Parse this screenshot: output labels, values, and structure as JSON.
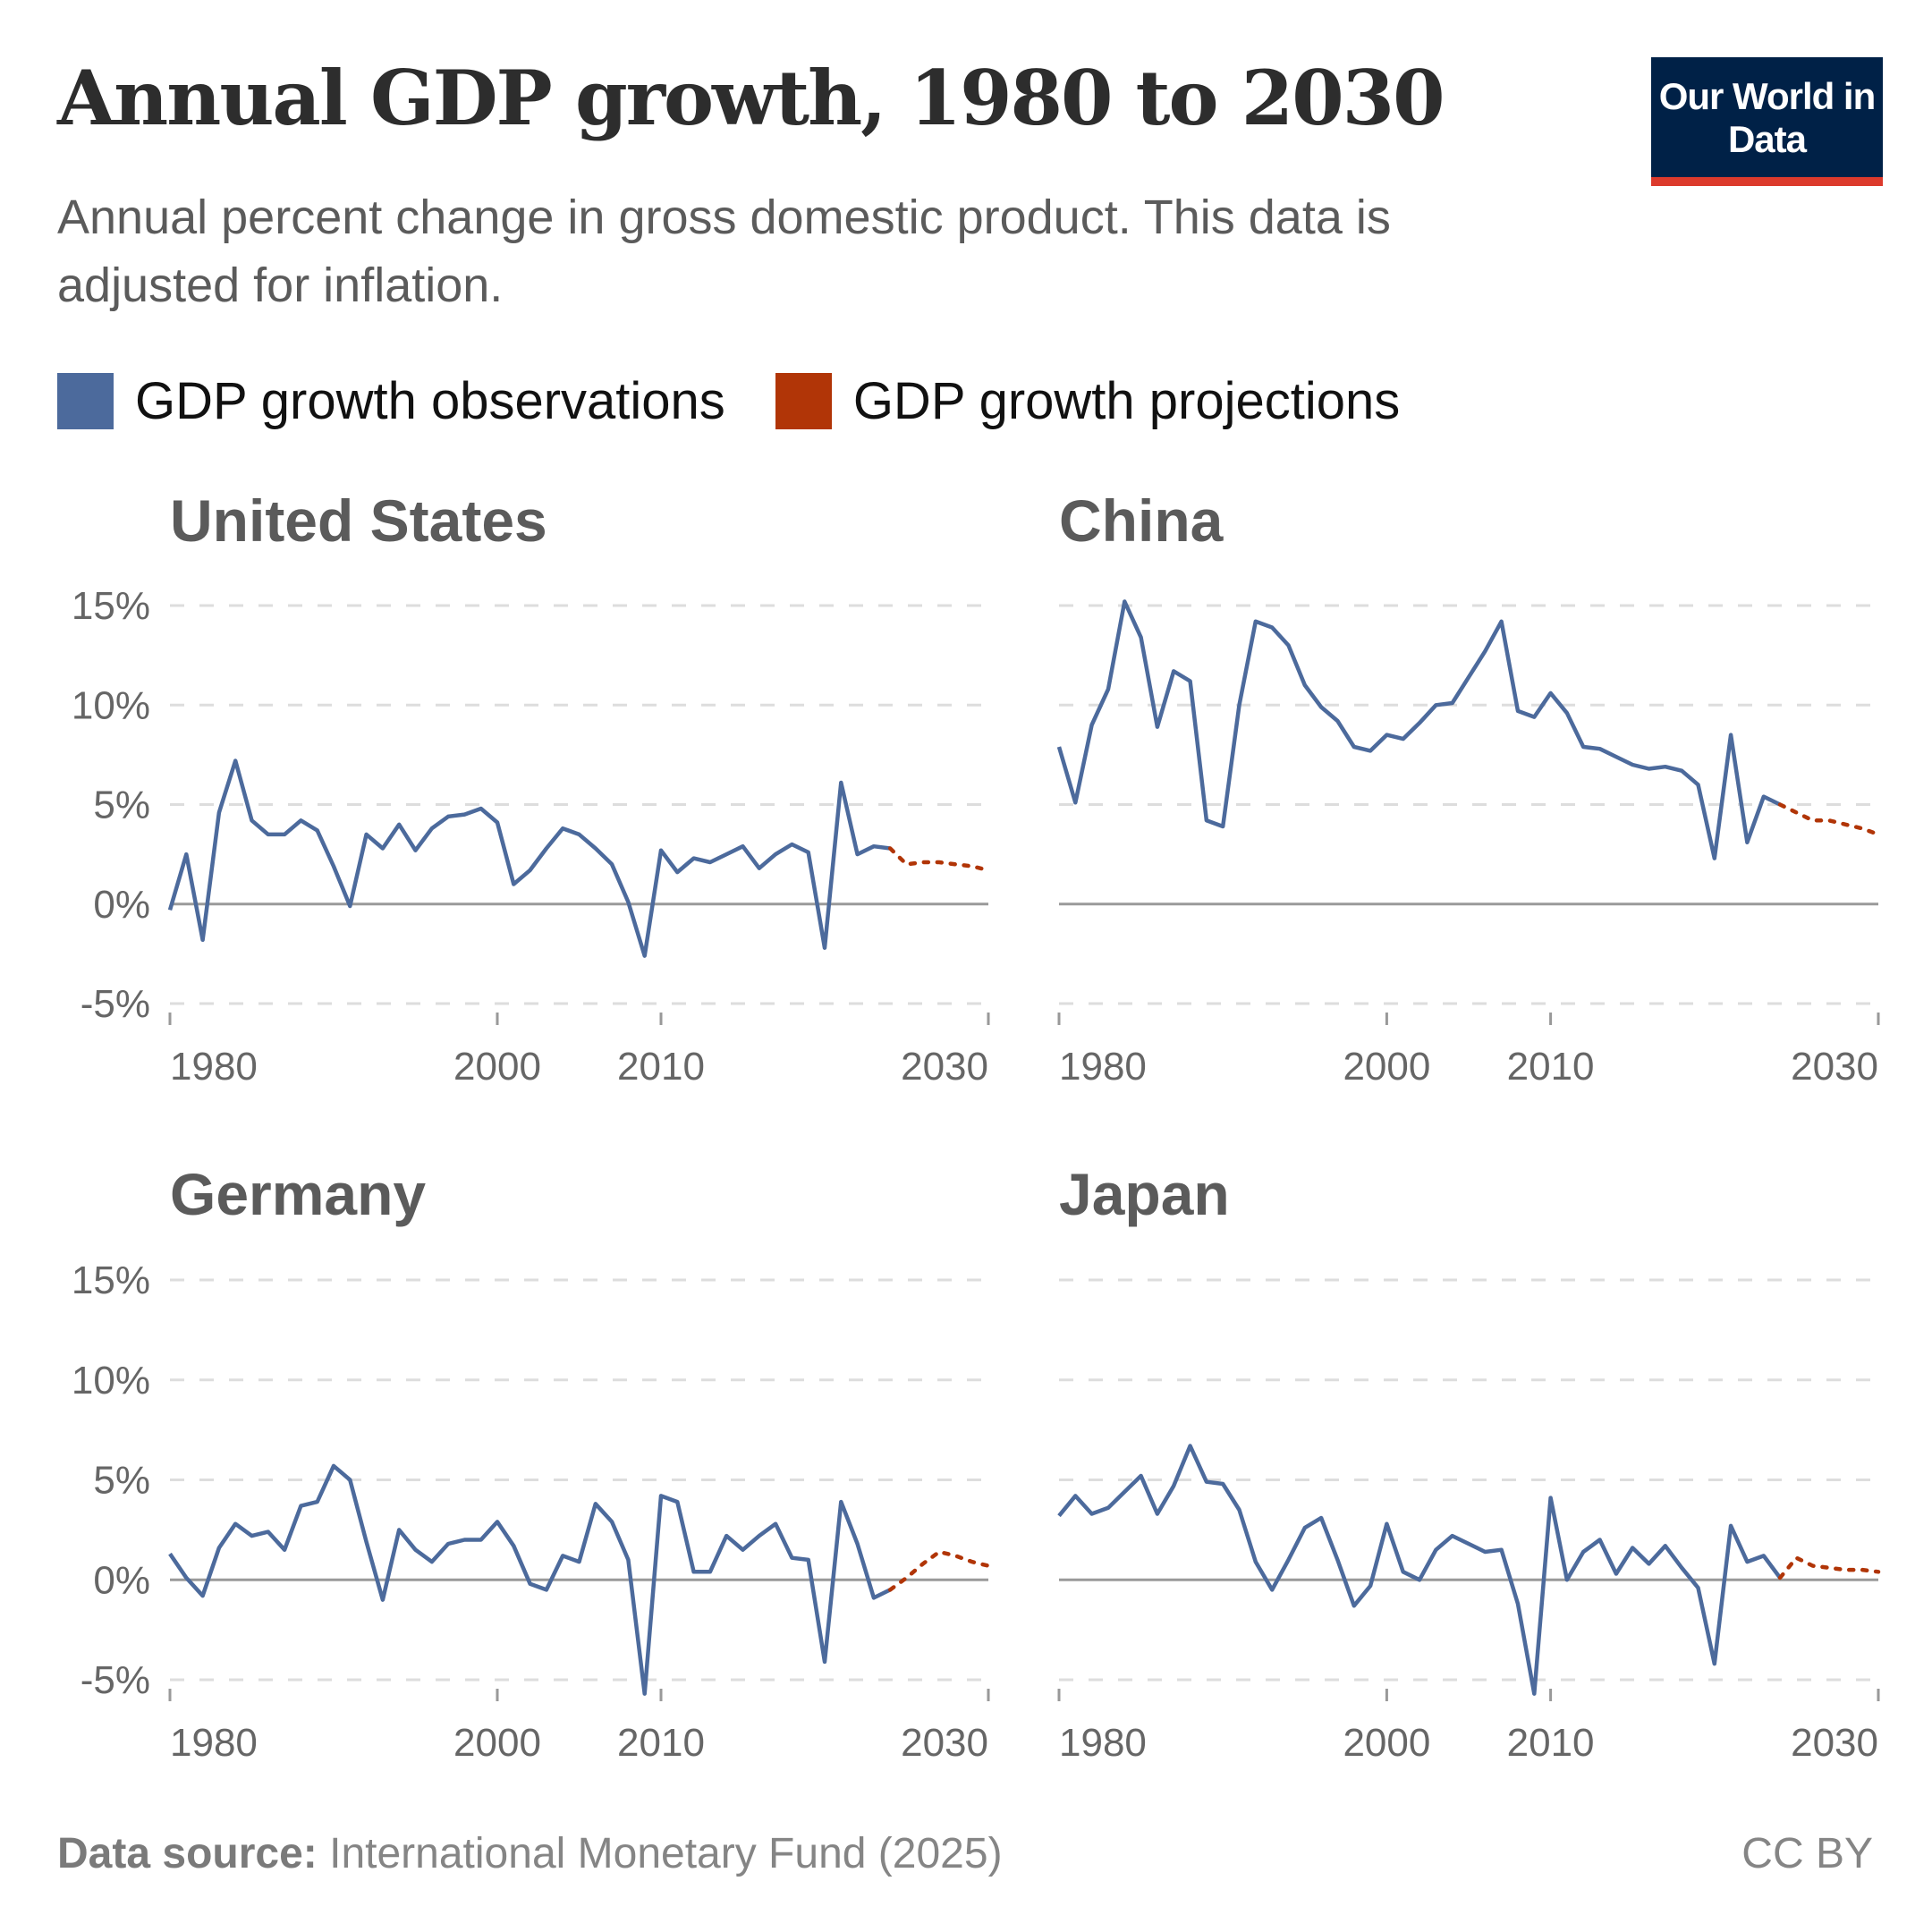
{
  "header": {
    "title": "Annual GDP growth, 1980 to 2030",
    "subtitle": "Annual percent change in gross domestic product. This data is adjusted for inflation.",
    "logo": "Our World in Data"
  },
  "legend": [
    {
      "label": "GDP growth observations",
      "color": "#4c6a9c"
    },
    {
      "label": "GDP growth projections",
      "color": "#b13507"
    }
  ],
  "footer": {
    "source_label": "Data source:",
    "source": "International Monetary Fund (2025)",
    "license": "CC BY"
  },
  "chart_data": [
    {
      "type": "line",
      "title": "United States",
      "xlim": [
        1980,
        2030
      ],
      "ylim": [
        -5,
        15
      ],
      "yticks": [
        "-5%",
        "0%",
        "5%",
        "10%",
        "15%"
      ],
      "yvalues": [
        -5,
        0,
        5,
        10,
        15
      ],
      "xticks": [
        "1980",
        "2000",
        "2010",
        "2030"
      ],
      "observations": {
        "start": 1980,
        "values": [
          -0.3,
          2.5,
          -1.8,
          4.6,
          7.2,
          4.2,
          3.5,
          3.5,
          4.2,
          3.7,
          1.9,
          -0.1,
          3.5,
          2.8,
          4.0,
          2.7,
          3.8,
          4.4,
          4.5,
          4.8,
          4.1,
          1.0,
          1.7,
          2.8,
          3.8,
          3.5,
          2.8,
          2.0,
          0.1,
          -2.6,
          2.7,
          1.6,
          2.3,
          2.1,
          2.5,
          2.9,
          1.8,
          2.5,
          3.0,
          2.6,
          -2.2,
          6.1,
          2.5,
          2.9,
          2.8
        ]
      },
      "projections": {
        "start": 2024,
        "values": [
          2.8,
          2.0,
          2.1,
          2.1,
          2.0,
          1.9,
          1.7
        ]
      }
    },
    {
      "type": "line",
      "title": "China",
      "xlim": [
        1980,
        2030
      ],
      "ylim": [
        -5,
        15
      ],
      "xticks": [
        "1980",
        "2000",
        "2010",
        "2030"
      ],
      "observations": {
        "start": 1980,
        "values": [
          7.9,
          5.1,
          9.0,
          10.8,
          15.2,
          13.4,
          8.9,
          11.7,
          11.2,
          4.2,
          3.9,
          10.0,
          14.2,
          13.9,
          13.0,
          11.0,
          9.9,
          9.2,
          7.9,
          7.7,
          8.5,
          8.3,
          9.1,
          10.0,
          10.1,
          11.4,
          12.7,
          14.2,
          9.7,
          9.4,
          10.6,
          9.6,
          7.9,
          7.8,
          7.4,
          7.0,
          6.8,
          6.9,
          6.7,
          6.0,
          2.3,
          8.5,
          3.1,
          5.4,
          5.0
        ]
      },
      "projections": {
        "start": 2024,
        "values": [
          5.0,
          4.6,
          4.2,
          4.2,
          4.0,
          3.8,
          3.5
        ]
      }
    },
    {
      "type": "line",
      "title": "Germany",
      "xlim": [
        1980,
        2030
      ],
      "ylim": [
        -5,
        15
      ],
      "yticks": [
        "-5%",
        "0%",
        "5%",
        "10%",
        "15%"
      ],
      "yvalues": [
        -5,
        0,
        5,
        10,
        15
      ],
      "xticks": [
        "1980",
        "2000",
        "2010",
        "2030"
      ],
      "observations": {
        "start": 1980,
        "values": [
          1.3,
          0.1,
          -0.8,
          1.6,
          2.8,
          2.2,
          2.4,
          1.5,
          3.7,
          3.9,
          5.7,
          5.0,
          1.9,
          -1.0,
          2.5,
          1.5,
          0.9,
          1.8,
          2.0,
          2.0,
          2.9,
          1.7,
          -0.2,
          -0.5,
          1.2,
          0.9,
          3.8,
          2.9,
          1.0,
          -5.7,
          4.2,
          3.9,
          0.4,
          0.4,
          2.2,
          1.5,
          2.2,
          2.8,
          1.1,
          1.0,
          -4.1,
          3.9,
          1.8,
          -0.9,
          -0.5
        ]
      },
      "projections": {
        "start": 2024,
        "values": [
          -0.5,
          0.1,
          0.8,
          1.4,
          1.2,
          0.9,
          0.7
        ]
      }
    },
    {
      "type": "line",
      "title": "Japan",
      "xlim": [
        1980,
        2030
      ],
      "ylim": [
        -5,
        15
      ],
      "xticks": [
        "1980",
        "2000",
        "2010",
        "2030"
      ],
      "observations": {
        "start": 1980,
        "values": [
          3.2,
          4.2,
          3.3,
          3.6,
          4.4,
          5.2,
          3.3,
          4.7,
          6.7,
          4.9,
          4.8,
          3.5,
          0.9,
          -0.5,
          1.0,
          2.6,
          3.1,
          1.0,
          -1.3,
          -0.3,
          2.8,
          0.4,
          0.0,
          1.5,
          2.2,
          1.8,
          1.4,
          1.5,
          -1.2,
          -5.7,
          4.1,
          0.0,
          1.4,
          2.0,
          0.3,
          1.6,
          0.8,
          1.7,
          0.6,
          -0.4,
          -4.2,
          2.7,
          0.9,
          1.2,
          0.1
        ]
      },
      "projections": {
        "start": 2024,
        "values": [
          0.1,
          1.1,
          0.7,
          0.6,
          0.5,
          0.5,
          0.4
        ]
      }
    }
  ]
}
